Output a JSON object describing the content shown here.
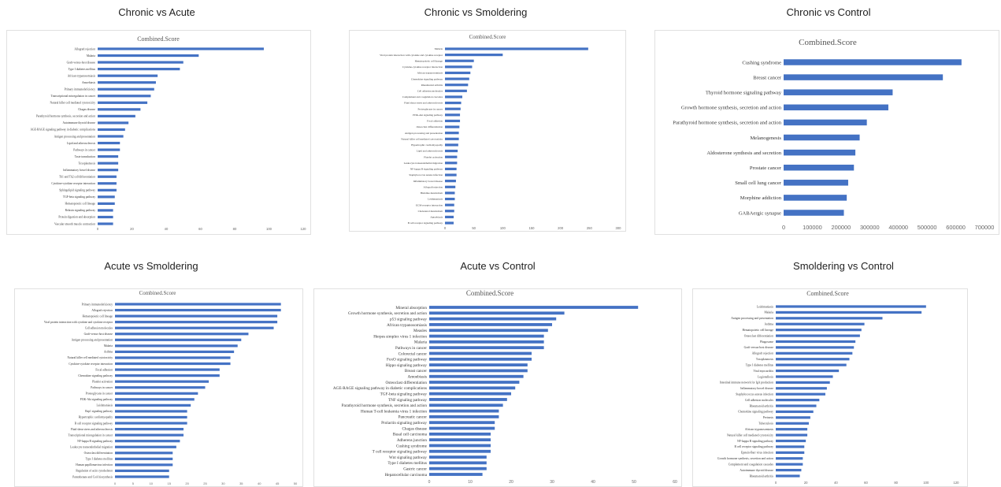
{
  "bar_color": "#4472C4",
  "chart_data": [
    {
      "type": "bar",
      "title": "Chronic vs Acute",
      "subtitle": "Combined.Score",
      "orientation": "horizontal",
      "xlim": [
        0,
        120
      ],
      "xticks": [
        "0",
        "20",
        "40",
        "60",
        "80",
        "100",
        "120"
      ],
      "categories": [
        "Allograft rejection",
        "Malaria",
        "Graft-versus-host disease",
        "Type I diabetes mellitus",
        "African trypanosomiasis",
        "Amoebiasis",
        "Primary immunodeficiency",
        "Transcriptional misregulation in cancer",
        "Natural killer cell mediated cytotoxicity",
        "Chagas disease",
        "Parathyroid hormone synthesis, secretion and action",
        "Autoimmune thyroid disease",
        "AGE-RAGE signaling pathway in diabetic complications",
        "Antigen processing and presentation",
        "Lipid and atherosclerosis",
        "Pathways in cancer",
        "Taste transduction",
        "Toxoplasmosis",
        "Inflammatory bowel disease",
        "Th1 and Th2 cell differentiation",
        "Cytokine-cytokine receptor interaction",
        "Sphingolipid signaling pathway",
        "TGF-beta signaling pathway",
        "Hematopoietic cell lineage",
        "Relaxin signaling pathway",
        "Protein digestion and absorption",
        "Vascular smooth muscle contraction"
      ],
      "values": [
        97,
        59,
        50,
        48,
        35,
        34,
        33,
        31,
        29,
        25,
        22,
        18,
        16,
        15,
        13,
        13,
        12,
        12,
        12,
        11,
        11,
        11,
        10,
        10,
        9,
        9,
        9
      ]
    },
    {
      "type": "bar",
      "title": "Chronic vs Smoldering",
      "subtitle": "Combined.Score",
      "orientation": "horizontal",
      "xlim": [
        0,
        300
      ],
      "xticks": [
        "0",
        "50",
        "100",
        "150",
        "200",
        "250",
        "300"
      ],
      "categories": [
        "Malaria",
        "Viral protein interaction with cytokine and cytokine receptor",
        "Hematopoietic cell lineage",
        "Cytokine-cytokine receptor interaction",
        "African trypanosomiasis",
        "Chemokine signaling pathway",
        "Rheumatoid arthritis",
        "Cell adhesion molecules",
        "Complement and coagulation cascades",
        "Fluid shear stress and atherosclerosis",
        "Proteoglycans in cancer",
        "PI3K-Akt signaling pathway",
        "Focal adhesion",
        "Osteoclast differentiation",
        "Antigen processing and presentation",
        "Natural killer cell mediated cytotoxicity",
        "Hypertrophic cardiomyopathy",
        "Lipid and atherosclerosis",
        "Platelet activation",
        "Leukocyte transendothelial migration",
        "NF-kappa B signaling pathway",
        "Staphylococcus aureus infection",
        "Inflammatory bowel disease",
        "Allograft rejection",
        "Histidine metabolism",
        "Leishmaniasis",
        "ECM-receptor interaction",
        "Cholesterol metabolism",
        "Amoebiasis",
        "B cell receptor signaling pathway"
      ],
      "values": [
        248,
        100,
        50,
        47,
        44,
        42,
        40,
        38,
        30,
        28,
        27,
        26,
        26,
        25,
        24,
        24,
        23,
        22,
        21,
        21,
        20,
        20,
        19,
        18,
        17,
        17,
        16,
        16,
        15,
        15
      ]
    },
    {
      "type": "bar",
      "title": "Chronic vs Control",
      "subtitle": "Combined.Score",
      "orientation": "horizontal",
      "xlim": [
        0,
        700000
      ],
      "xticks": [
        "0",
        "100000",
        "200000",
        "300000",
        "400000",
        "500000",
        "600000",
        "700000"
      ],
      "categories": [
        "Cushing syndrome",
        "Breast cancer",
        "Thyroid hormone signaling pathway",
        "Growth hormone synthesis, secretion and action",
        "Parathyroid hormone synthesis, secretion and action",
        "Melanogenesis",
        "Aldosterone synthesis and secretion",
        "Prostate cancer",
        "Small cell lung cancer",
        "Morphine addiction",
        "GABAergic synapse"
      ],
      "values": [
        620000,
        555000,
        380000,
        365000,
        290000,
        265000,
        250000,
        245000,
        225000,
        220000,
        210000
      ]
    },
    {
      "type": "bar",
      "title": "Acute vs Smoldering",
      "subtitle": "Combined.Score",
      "orientation": "horizontal",
      "xlim": [
        0,
        50
      ],
      "xticks": [
        "0",
        "5",
        "10",
        "15",
        "20",
        "25",
        "30",
        "35",
        "40",
        "45",
        "50"
      ],
      "categories": [
        "Primary immunodeficiency",
        "Allograft rejection",
        "Hematopoietic cell lineage",
        "Viral protein interaction with cytokine and cytokine receptor",
        "Cell adhesion molecules",
        "Graft-versus-host disease",
        "Antigen processing and presentation",
        "Malaria",
        "Asthma",
        "Natural killer cell mediated cytotoxicity",
        "Cytokine-cytokine receptor interaction",
        "Focal adhesion",
        "Chemokine signaling pathway",
        "Platelet activation",
        "Pathways in cancer",
        "Proteoglycans in cancer",
        "PI3K-Akt signaling pathway",
        "Leishmaniasis",
        "Rap1 signaling pathway",
        "Hypertrophic cardiomyopathy",
        "B cell receptor signaling pathway",
        "Fluid shear stress and atherosclerosis",
        "Transcriptional misregulation in cancer",
        "NF-kappa B signaling pathway",
        "Leukocyte transendothelial migration",
        "Osteoclast differentiation",
        "Type I diabetes mellitus",
        "Human papillomavirus infection",
        "Regulation of actin cytoskeleton",
        "Pantothenate and CoA biosynthesis"
      ],
      "values": [
        46,
        46,
        45,
        45,
        44,
        37,
        35,
        34,
        33,
        32,
        32,
        29,
        29,
        26,
        25,
        23,
        22,
        21,
        20,
        20,
        20,
        19,
        19,
        18,
        17,
        16,
        16,
        16,
        15,
        15
      ]
    },
    {
      "type": "bar",
      "title": "Acute vs Control",
      "subtitle": "Combined.Score",
      "orientation": "horizontal",
      "xlim": [
        0,
        60
      ],
      "xticks": [
        "0",
        "10",
        "20",
        "30",
        "40",
        "50",
        "60"
      ],
      "categories": [
        "Mineral absorption",
        "Growth hormone synthesis, secretion and action",
        "p53 signaling pathway",
        "African trypanosomiasis",
        "Measles",
        "Herpes simplex virus 1 infection",
        "Malaria",
        "Pathways in cancer",
        "Colorectal cancer",
        "FoxO signaling pathway",
        "Hippo signaling pathway",
        "Breast cancer",
        "Amoebiasis",
        "Osteoclast differentiation",
        "AGE-RAGE signaling pathway in diabetic complications",
        "TGF-beta signaling pathway",
        "TNF signaling pathway",
        "Parathyroid hormone synthesis, secretion and action",
        "Human T-cell leukemia virus 1 infection",
        "Pancreatic cancer",
        "Prolactin signaling pathway",
        "Chagas disease",
        "Basal cell carcinoma",
        "Adherens junction",
        "Cushing syndrome",
        "T cell receptor signaling pathway",
        "Wnt signaling pathway",
        "Type I diabetes mellitus",
        "Gastric cancer",
        "Hepatocellular carcinoma"
      ],
      "values": [
        51,
        33,
        31,
        30,
        29,
        28,
        28,
        28,
        25,
        25,
        24,
        24,
        23,
        22,
        21,
        20,
        19,
        18,
        17,
        17,
        16,
        16,
        15,
        15,
        15,
        15,
        14,
        14,
        14,
        13
      ]
    },
    {
      "type": "bar",
      "title": "Smoldering vs Control",
      "subtitle": "Combined.Score",
      "orientation": "horizontal",
      "xlim": [
        0,
        120
      ],
      "xticks": [
        "0",
        "20",
        "40",
        "60",
        "80",
        "100",
        "120"
      ],
      "categories": [
        "Leishmaniasis",
        "Malaria",
        "Antigen processing and presentation",
        "Asthma",
        "Hematopoietic cell lineage",
        "Osteoclast differentiation",
        "Phagosome",
        "Graft-versus-host disease",
        "Allograft rejection",
        "Toxoplasmosis",
        "Type I diabetes mellitus",
        "Viral myocarditis",
        "Legionellosis",
        "Intestinal immune network for IgA production",
        "Inflammatory bowel disease",
        "Staphylococcus aureus infection",
        "Cell adhesion molecules",
        "Rheumatoid arthritis",
        "Chemokine signaling pathway",
        "Pertussis",
        "Tuberculosis",
        "African trypanosomiasis",
        "Natural killer cell mediated cytotoxicity",
        "NF-kappa B signaling pathway",
        "B cell receptor signaling pathway",
        "Epstein-Barr virus infection",
        "Growth hormone synthesis, secretion and action",
        "Complement and coagulation cascades",
        "Autoimmune thyroid disease",
        "Rheumatoid arthritis"
      ],
      "values": [
        100,
        97,
        71,
        59,
        57,
        56,
        53,
        52,
        51,
        49,
        47,
        42,
        38,
        36,
        34,
        33,
        29,
        27,
        25,
        23,
        22,
        21,
        21,
        20,
        19,
        19,
        18,
        18,
        17,
        16
      ]
    }
  ]
}
